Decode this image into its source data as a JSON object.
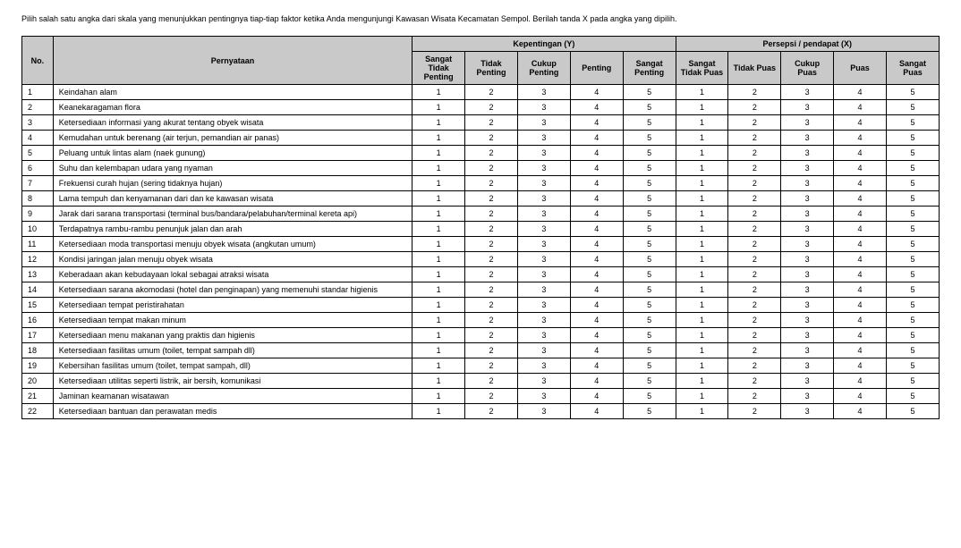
{
  "instructions": "Pilih salah satu angka dari skala yang menunjukkan pentingnya tiap-tiap faktor ketika Anda mengunjungi Kawasan Wisata Kecamatan Sempol. Berilah tanda X pada angka yang dipilih.",
  "header": {
    "no": "No.",
    "statement": "Pernyataan",
    "groupY": "Kepentingan (Y)",
    "groupX": "Persepsi / pendapat (X)",
    "y1": "Sangat Tidak Penting",
    "y2": "Tidak Penting",
    "y3": "Cukup Penting",
    "y4": "Penting",
    "y5": "Sangat Penting",
    "x1": "Sangat Tidak Puas",
    "x2": "Tidak Puas",
    "x3": "Cukup Puas",
    "x4": "Puas",
    "x5": "Sangat Puas"
  },
  "scale": {
    "v1": "1",
    "v2": "2",
    "v3": "3",
    "v4": "4",
    "v5": "5"
  },
  "rows": [
    {
      "no": "1",
      "stmt": "Keindahan alam"
    },
    {
      "no": "2",
      "stmt": "Keanekaragaman flora"
    },
    {
      "no": "3",
      "stmt": "Ketersediaan informasi yang akurat tentang obyek wisata"
    },
    {
      "no": "4",
      "stmt": "Kemudahan untuk berenang (air terjun, pemandian air panas)"
    },
    {
      "no": "5",
      "stmt": "Peluang untuk lintas alam (naek gunung)"
    },
    {
      "no": "6",
      "stmt": "Suhu dan kelembapan udara yang nyaman"
    },
    {
      "no": "7",
      "stmt": "Frekuensi curah hujan (sering tidaknya hujan)"
    },
    {
      "no": "8",
      "stmt": "Lama tempuh dan kenyamanan dari dan ke kawasan wisata"
    },
    {
      "no": "9",
      "stmt": "Jarak dari sarana transportasi (terminal bus/bandara/pelabuhan/terminal kereta api)"
    },
    {
      "no": "10",
      "stmt": "Terdapatnya rambu-rambu penunjuk jalan dan arah"
    },
    {
      "no": "11",
      "stmt": "Ketersediaan moda transportasi menuju obyek wisata (angkutan umum)"
    },
    {
      "no": "12",
      "stmt": "Kondisi jaringan jalan menuju obyek wisata"
    },
    {
      "no": "13",
      "stmt": "Keberadaan akan kebudayaan lokal sebagai atraksi wisata"
    },
    {
      "no": "14",
      "stmt": "Ketersediaan sarana akomodasi (hotel dan penginapan) yang memenuhi standar higienis"
    },
    {
      "no": "15",
      "stmt": "Ketersediaan tempat peristirahatan"
    },
    {
      "no": "16",
      "stmt": "Ketersediaan tempat makan minum"
    },
    {
      "no": "17",
      "stmt": "Ketersediaan menu makanan yang praktis dan higienis"
    },
    {
      "no": "18",
      "stmt": "Ketersediaan fasilitas umum (toilet, tempat sampah dll)"
    },
    {
      "no": "19",
      "stmt": "Kebersihan fasilitas umum (toilet, tempat sampah, dll)"
    },
    {
      "no": "20",
      "stmt": "Ketersediaan utilitas seperti listrik, air bersih, komunikasi"
    },
    {
      "no": "21",
      "stmt": "Jaminan keamanan wisatawan"
    },
    {
      "no": "22",
      "stmt": "Ketersediaan bantuan dan perawatan medis"
    }
  ]
}
